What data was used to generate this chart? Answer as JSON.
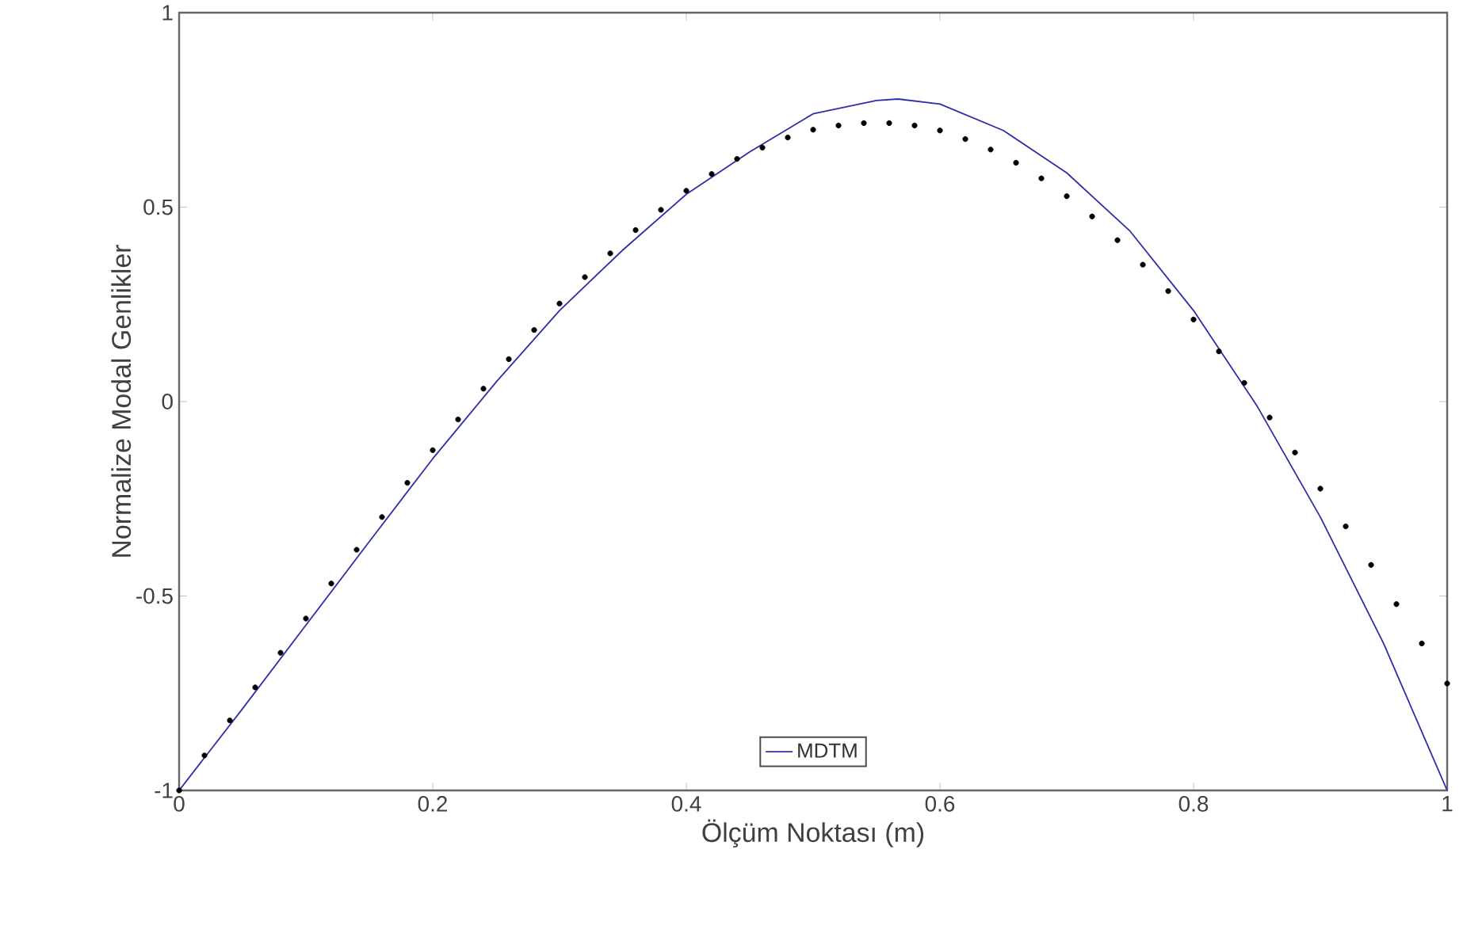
{
  "chart_data": {
    "type": "line",
    "xlabel": "Ölçüm Noktası (m)",
    "ylabel": "Normalize Modal Genlikler",
    "xlim": [
      0,
      1
    ],
    "ylim": [
      -1,
      1
    ],
    "xticks": [
      0,
      0.2,
      0.4,
      0.6,
      0.8,
      1
    ],
    "yticks": [
      -1,
      -0.5,
      0,
      0.5,
      1
    ],
    "grid": false,
    "legend": "bottom",
    "series": [
      {
        "type": "scatter",
        "color": "#000000",
        "marker": "circle",
        "x": [
          0,
          0.02,
          0.04,
          0.06,
          0.08,
          0.1,
          0.12,
          0.14,
          0.16,
          0.18,
          0.2,
          0.22,
          0.24,
          0.26,
          0.28,
          0.3,
          0.32,
          0.34,
          0.36,
          0.38,
          0.4,
          0.42,
          0.44,
          0.46,
          0.48,
          0.5,
          0.52,
          0.54,
          0.56,
          0.58,
          0.6,
          0.62,
          0.64,
          0.66,
          0.68,
          0.7,
          0.72,
          0.74,
          0.76,
          0.78,
          0.8,
          0.82,
          0.84,
          0.86,
          0.88,
          0.9,
          0.92,
          0.94,
          0.96,
          0.98,
          1
        ],
        "values": [
          -1,
          -0.91,
          -0.82,
          -0.735,
          -0.646,
          -0.558,
          -0.468,
          -0.381,
          -0.297,
          -0.209,
          -0.125,
          -0.046,
          0.033,
          0.109,
          0.184,
          0.252,
          0.32,
          0.381,
          0.441,
          0.493,
          0.542,
          0.585,
          0.624,
          0.653,
          0.679,
          0.699,
          0.71,
          0.716,
          0.716,
          0.71,
          0.697,
          0.675,
          0.648,
          0.614,
          0.574,
          0.528,
          0.476,
          0.415,
          0.352,
          0.284,
          0.211,
          0.129,
          0.048,
          -0.041,
          -0.131,
          -0.224,
          -0.321,
          -0.42,
          -0.521,
          -0.622,
          -0.725
        ]
      },
      {
        "name": "MDTM",
        "color": "#2e2ea8",
        "line_style": "solid",
        "x": [
          0,
          0.05,
          0.1,
          0.15,
          0.2,
          0.25,
          0.3,
          0.35,
          0.4,
          0.45,
          0.5,
          0.55,
          0.567,
          0.6,
          0.65,
          0.7,
          0.75,
          0.8,
          0.85,
          0.9,
          0.95,
          1
        ],
        "values": [
          -1,
          -0.79,
          -0.575,
          -0.36,
          -0.147,
          0.05,
          0.234,
          0.39,
          0.533,
          0.642,
          0.74,
          0.774,
          0.778,
          0.765,
          0.697,
          0.588,
          0.438,
          0.234,
          -0.011,
          -0.297,
          -0.623,
          -1
        ]
      }
    ]
  }
}
